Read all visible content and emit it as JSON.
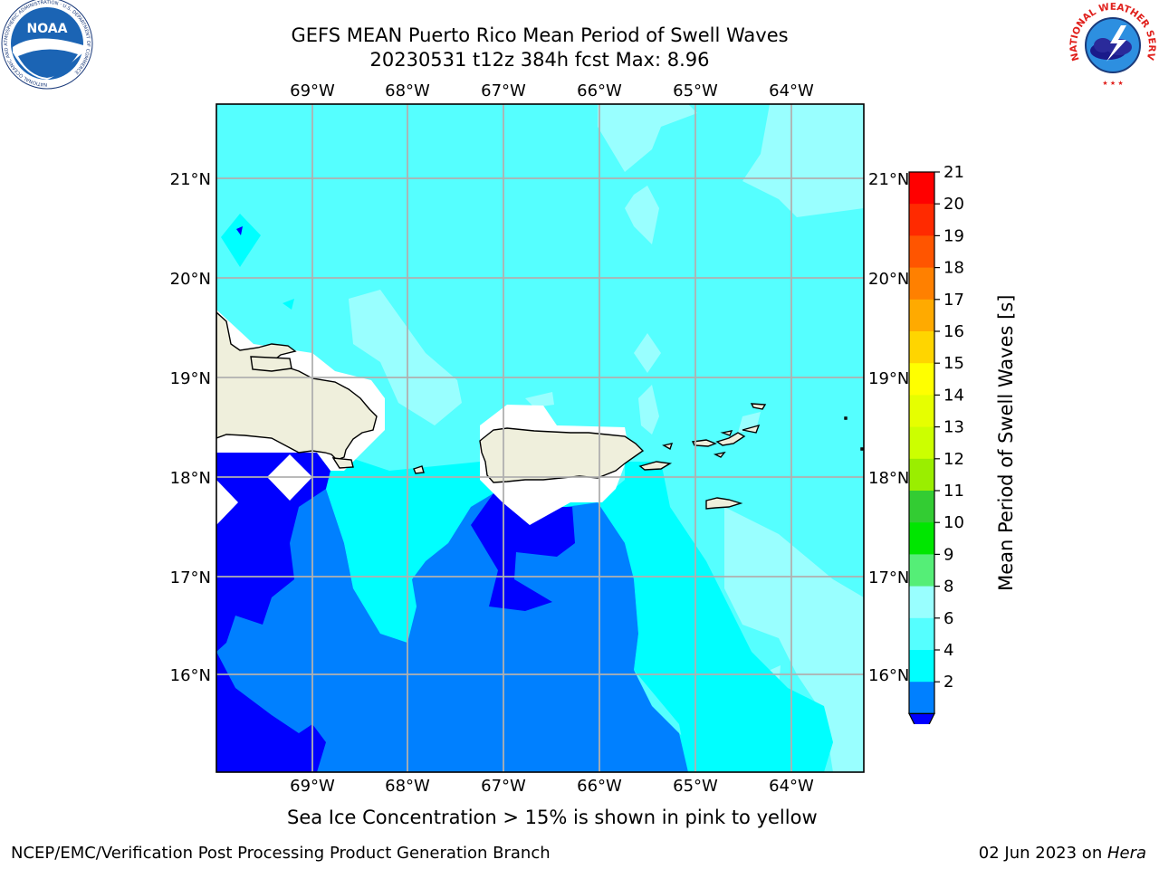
{
  "title": {
    "line1": "GEFS MEAN Puerto Rico Mean Period of Swell Waves",
    "line2": "20230531 t12z 384h fcst   Max: 8.96"
  },
  "logos": {
    "noaa_text": "NOAA",
    "noaa_ring": "NATIONAL OCEANIC AND ATMOSPHERIC ADMINISTRATION · U.S. DEPARTMENT OF COMMERCE",
    "nws_ring": "NATIONAL WEATHER SERVICE"
  },
  "map": {
    "lon_labels": [
      "69°W",
      "68°W",
      "67°W",
      "66°W",
      "65°W",
      "64°W"
    ],
    "lat_labels": [
      "21°N",
      "20°N",
      "19°N",
      "18°N",
      "17°N",
      "16°N"
    ]
  },
  "colorbar": {
    "label": "Mean Period of Swell Waves [s]",
    "ticks": [
      "21",
      "20",
      "19",
      "18",
      "17",
      "16",
      "15",
      "14",
      "13",
      "12",
      "11",
      "10",
      "9",
      "8",
      "6",
      "4",
      "2"
    ],
    "colors": [
      "#ff0000",
      "#ff2a00",
      "#ff5500",
      "#ff8000",
      "#ffaa00",
      "#ffd500",
      "#ffff00",
      "#e6ff00",
      "#ccff00",
      "#9aee00",
      "#33cc33",
      "#00e600",
      "#55ee77",
      "#99ffff",
      "#55ffff",
      "#00ffff",
      "#0080ff"
    ],
    "extend_color": "#0000ff"
  },
  "ice_note": "Sea Ice Concentration > 15% is shown in pink to yellow",
  "footer": {
    "left": "NCEP/EMC/Verification Post Processing Product Generation Branch",
    "right_prefix": "02 Jun 2023 on ",
    "right_italic": "Hera"
  }
}
